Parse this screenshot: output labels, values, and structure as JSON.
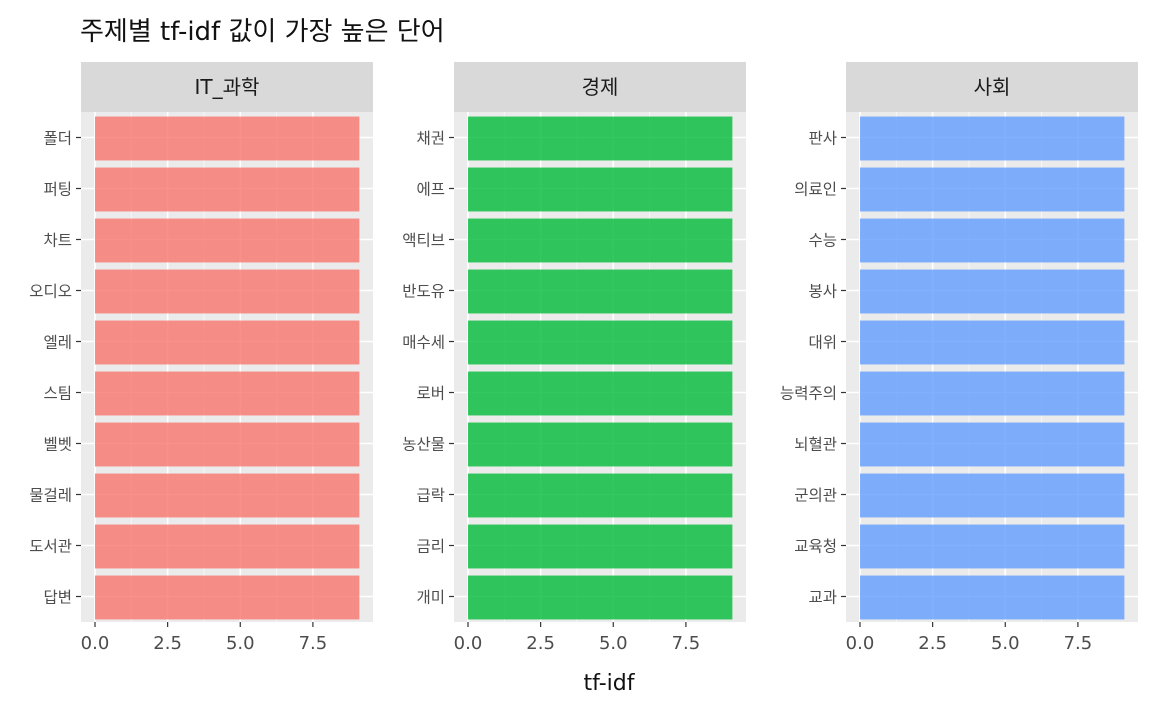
{
  "chart_data": {
    "type": "bar",
    "orientation": "horizontal",
    "title": "주제별 tf-idf 값이 가장 높은 단어",
    "xlabel": "tf-idf",
    "ylabel": "",
    "xlim": [
      0,
      9.5
    ],
    "xticks": [
      0,
      2.5,
      5,
      7.5
    ],
    "xtick_labels": [
      "0.0",
      "2.5",
      "5.0",
      "7.5"
    ],
    "grid": true,
    "legend": "none",
    "facets": [
      {
        "name": "IT_과학",
        "color": "#F8766D",
        "categories": [
          "폴더",
          "퍼팅",
          "차트",
          "오디오",
          "엘레",
          "스팀",
          "벨벳",
          "물걸레",
          "도서관",
          "답변"
        ],
        "values": [
          9.1,
          9.1,
          9.1,
          9.1,
          9.1,
          9.1,
          9.1,
          9.1,
          9.1,
          9.1
        ]
      },
      {
        "name": "경제",
        "color": "#00BA38",
        "categories": [
          "채권",
          "에프",
          "액티브",
          "반도유",
          "매수세",
          "로버",
          "농산물",
          "급락",
          "금리",
          "개미"
        ],
        "values": [
          9.1,
          9.1,
          9.1,
          9.1,
          9.1,
          9.1,
          9.1,
          9.1,
          9.1,
          9.1
        ]
      },
      {
        "name": "사회",
        "color": "#619CFF",
        "categories": [
          "판사",
          "의료인",
          "수능",
          "봉사",
          "대위",
          "능력주의",
          "뇌혈관",
          "군의관",
          "교육청",
          "교과"
        ],
        "values": [
          9.1,
          9.1,
          9.1,
          9.1,
          9.1,
          9.1,
          9.1,
          9.1,
          9.1,
          9.1
        ]
      }
    ]
  }
}
